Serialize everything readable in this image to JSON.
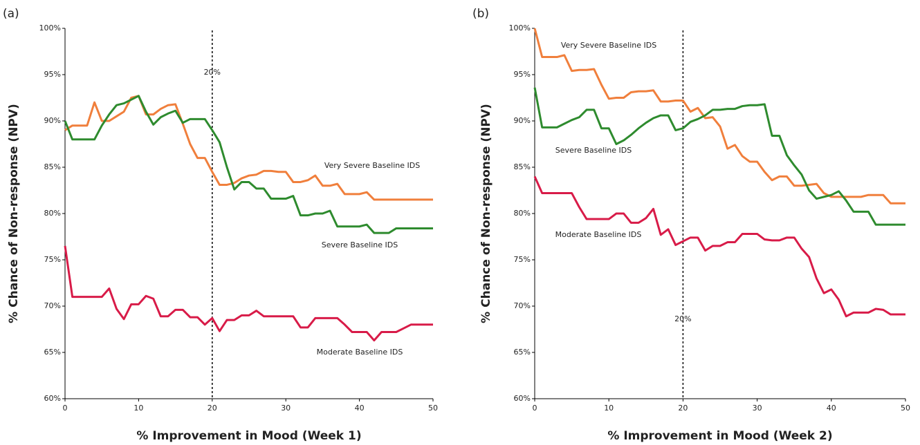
{
  "chart_data": [
    {
      "type": "line",
      "panel_label": "(a)",
      "x_label": "% Improvement in Mood (Week 1)",
      "y_label": "% Chance of Non-response (NPV)",
      "xlim": [
        0,
        50
      ],
      "xticks": [
        0,
        10,
        20,
        30,
        40,
        50
      ],
      "ylim": [
        60,
        100
      ],
      "yticks": [
        {
          "value": 60,
          "label": "60%"
        },
        {
          "value": 65,
          "label": "65%"
        },
        {
          "value": 70,
          "label": "70%"
        },
        {
          "value": 75,
          "label": "75%"
        },
        {
          "value": 80,
          "label": "80%"
        },
        {
          "value": 85,
          "label": "85%"
        },
        {
          "value": 90,
          "label": "90%"
        },
        {
          "value": 95,
          "label": "95%"
        },
        {
          "value": 100,
          "label": "100%"
        }
      ],
      "vline": {
        "value": 20,
        "label": "20%"
      },
      "x": [
        0,
        1,
        2,
        3,
        4,
        5,
        6,
        7,
        8,
        9,
        10,
        11,
        12,
        13,
        14,
        15,
        16,
        17,
        18,
        19,
        20,
        21,
        22,
        23,
        24,
        25,
        26,
        27,
        28,
        29,
        30,
        31,
        32,
        33,
        34,
        35,
        36,
        37,
        38,
        39,
        40,
        41,
        42,
        43,
        44,
        45,
        46,
        47,
        48,
        49,
        50
      ],
      "series": [
        {
          "name": "Very Severe Baseline IDS",
          "color": "#f07f3c",
          "values": [
            89,
            89.5,
            89.5,
            89.5,
            92,
            90,
            90,
            90.5,
            91,
            92.5,
            92.7,
            90.7,
            90.7,
            91.3,
            91.7,
            91.8,
            89.7,
            87.5,
            86,
            86,
            84.5,
            83.1,
            83.1,
            83.3,
            83.8,
            84.1,
            84.2,
            84.6,
            84.6,
            84.5,
            84.5,
            83.4,
            83.4,
            83.6,
            84.1,
            83,
            83,
            83.2,
            82.1,
            82.1,
            82.1,
            82.3,
            81.5,
            81.5,
            81.5,
            81.5,
            81.5,
            81.5,
            81.5,
            81.5,
            81.5
          ]
        },
        {
          "name": "Severe Baseline IDS",
          "color": "#2e8b2e",
          "values": [
            90,
            88,
            88,
            88,
            88,
            89.5,
            90.7,
            91.7,
            91.9,
            92.3,
            92.7,
            91,
            89.6,
            90.4,
            90.8,
            91.1,
            89.8,
            90.2,
            90.2,
            90.2,
            89,
            87.7,
            85,
            82.6,
            83.4,
            83.4,
            82.7,
            82.7,
            81.6,
            81.6,
            81.6,
            81.9,
            79.8,
            79.8,
            80,
            80,
            80.3,
            78.6,
            78.6,
            78.6,
            78.6,
            78.8,
            77.9,
            77.9,
            77.9,
            78.4,
            78.4,
            78.4,
            78.4,
            78.4,
            78.4
          ]
        },
        {
          "name": "Moderate Baseline IDS",
          "color": "#d81b48",
          "values": [
            76.5,
            71,
            71,
            71,
            71,
            71,
            71.9,
            69.7,
            68.6,
            70.2,
            70.2,
            71.1,
            70.8,
            68.9,
            68.9,
            69.6,
            69.6,
            68.8,
            68.8,
            68,
            68.7,
            67.3,
            68.5,
            68.5,
            69,
            69,
            69.5,
            68.9,
            68.9,
            68.9,
            68.9,
            68.9,
            67.7,
            67.7,
            68.7,
            68.7,
            68.7,
            68.7,
            68,
            67.2,
            67.2,
            67.2,
            66.3,
            67.2,
            67.2,
            67.2,
            67.6,
            68,
            68,
            68,
            68
          ]
        }
      ]
    },
    {
      "type": "line",
      "panel_label": "(b)",
      "x_label": "% Improvement in Mood (Week 2)",
      "y_label": "% Chance of Non-response (NPV)",
      "xlim": [
        0,
        50
      ],
      "xticks": [
        0,
        10,
        20,
        30,
        40,
        50
      ],
      "ylim": [
        60,
        100
      ],
      "yticks": [
        {
          "value": 60,
          "label": "60%"
        },
        {
          "value": 65,
          "label": "65%"
        },
        {
          "value": 70,
          "label": "70%"
        },
        {
          "value": 75,
          "label": "75%"
        },
        {
          "value": 80,
          "label": "80%"
        },
        {
          "value": 85,
          "label": "85%"
        },
        {
          "value": 90,
          "label": "90%"
        },
        {
          "value": 95,
          "label": "95%"
        },
        {
          "value": 100,
          "label": "100%"
        }
      ],
      "vline": {
        "value": 20,
        "label": "20%"
      },
      "x": [
        0,
        1,
        2,
        3,
        4,
        5,
        6,
        7,
        8,
        9,
        10,
        11,
        12,
        13,
        14,
        15,
        16,
        17,
        18,
        19,
        20,
        21,
        22,
        23,
        24,
        25,
        26,
        27,
        28,
        29,
        30,
        31,
        32,
        33,
        34,
        35,
        36,
        37,
        38,
        39,
        40,
        41,
        42,
        43,
        44,
        45,
        46,
        47,
        48,
        49,
        50
      ],
      "series": [
        {
          "name": "Very Severe Baseline IDS",
          "color": "#f07f3c",
          "values": [
            100,
            96.9,
            96.9,
            96.9,
            97.1,
            95.4,
            95.5,
            95.5,
            95.6,
            93.9,
            92.4,
            92.5,
            92.5,
            93.1,
            93.2,
            93.2,
            93.3,
            92.1,
            92.1,
            92.2,
            92.2,
            91,
            91.4,
            90.3,
            90.4,
            89.4,
            87,
            87.4,
            86.2,
            85.6,
            85.6,
            84.5,
            83.6,
            84,
            84,
            83,
            83,
            83.1,
            83.2,
            82.2,
            81.8,
            81.8,
            81.8,
            81.8,
            81.8,
            82,
            82,
            82,
            81.1,
            81.1,
            81.1
          ]
        },
        {
          "name": "Severe Baseline IDS",
          "color": "#2e8b2e",
          "values": [
            93.6,
            89.3,
            89.3,
            89.3,
            89.7,
            90.1,
            90.4,
            91.2,
            91.2,
            89.2,
            89.2,
            87.5,
            87.9,
            88.5,
            89.2,
            89.8,
            90.3,
            90.6,
            90.6,
            89,
            89.2,
            89.9,
            90.2,
            90.6,
            91.2,
            91.2,
            91.3,
            91.3,
            91.6,
            91.7,
            91.7,
            91.8,
            88.4,
            88.4,
            86.3,
            85.2,
            84.2,
            82.5,
            81.6,
            81.8,
            82,
            82.4,
            81.4,
            80.2,
            80.2,
            80.2,
            78.8,
            78.8,
            78.8,
            78.8,
            78.8
          ]
        },
        {
          "name": "Moderate Baseline IDS",
          "color": "#d81b48",
          "values": [
            84,
            82.2,
            82.2,
            82.2,
            82.2,
            82.2,
            80.7,
            79.4,
            79.4,
            79.4,
            79.4,
            80,
            80,
            79,
            79,
            79.5,
            80.5,
            77.7,
            78.3,
            76.6,
            77,
            77.4,
            77.4,
            76,
            76.5,
            76.5,
            76.9,
            76.9,
            77.8,
            77.8,
            77.8,
            77.2,
            77.1,
            77.1,
            77.4,
            77.4,
            76.2,
            75.3,
            73,
            71.4,
            71.8,
            70.7,
            68.9,
            69.3,
            69.3,
            69.3,
            69.7,
            69.6,
            69.1,
            69.1,
            69.1
          ]
        }
      ]
    }
  ]
}
